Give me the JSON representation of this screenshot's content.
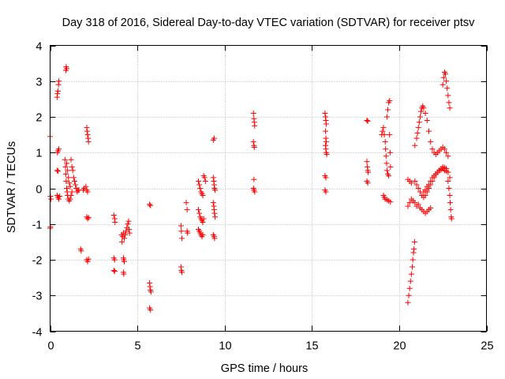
{
  "chart_data": {
    "type": "scatter",
    "title": "Day 318 of 2016, Sidereal Day-to-day VTEC variation (SDTVAR) for receiver ptsv",
    "xlabel": "GPS time / hours",
    "ylabel": "SDTVAR / TECUs",
    "xlim": [
      0,
      25
    ],
    "ylim": [
      -4,
      4
    ],
    "x_ticks": [
      0,
      5,
      10,
      15,
      20,
      25
    ],
    "x_tick_labels": [
      "0",
      "5",
      "10",
      "15",
      "20",
      "25"
    ],
    "y_ticks": [
      -4,
      -3,
      -2,
      -1,
      0,
      1,
      2,
      3,
      4
    ],
    "y_tick_labels": [
      "-4",
      "-3",
      "-2",
      "-1",
      "0",
      "1",
      "2",
      "3",
      "4"
    ],
    "grid": true,
    "marker": "plus",
    "color": "#ff0000",
    "points": [
      [
        0.0,
        1.45
      ],
      [
        0.02,
        -0.22
      ],
      [
        0.05,
        -0.3
      ],
      [
        0.02,
        -1.08
      ],
      [
        0.0,
        -1.12
      ],
      [
        0.4,
        2.55
      ],
      [
        0.42,
        2.65
      ],
      [
        0.45,
        2.72
      ],
      [
        0.48,
        2.9
      ],
      [
        0.5,
        3.0
      ],
      [
        0.42,
        1.0
      ],
      [
        0.45,
        1.05
      ],
      [
        0.5,
        1.1
      ],
      [
        0.4,
        0.5
      ],
      [
        0.45,
        0.48
      ],
      [
        0.4,
        -0.2
      ],
      [
        0.45,
        -0.25
      ],
      [
        0.5,
        -0.3
      ],
      [
        0.55,
        -0.22
      ],
      [
        0.9,
        3.3
      ],
      [
        0.92,
        3.4
      ],
      [
        0.95,
        3.35
      ],
      [
        0.85,
        0.8
      ],
      [
        0.88,
        0.6
      ],
      [
        0.9,
        0.4
      ],
      [
        0.92,
        0.2
      ],
      [
        0.95,
        0.0
      ],
      [
        0.98,
        -0.1
      ],
      [
        1.0,
        -0.2
      ],
      [
        1.05,
        -0.3
      ],
      [
        1.1,
        -0.35
      ],
      [
        1.15,
        -0.3
      ],
      [
        1.2,
        -0.2
      ],
      [
        1.25,
        -0.1
      ],
      [
        0.95,
        0.7
      ],
      [
        1.0,
        0.5
      ],
      [
        1.05,
        0.3
      ],
      [
        1.1,
        0.15
      ],
      [
        1.15,
        0.05
      ],
      [
        1.2,
        0.8
      ],
      [
        1.25,
        0.6
      ],
      [
        1.3,
        0.5
      ],
      [
        1.35,
        0.3
      ],
      [
        1.4,
        0.2
      ],
      [
        1.45,
        0.1
      ],
      [
        1.5,
        0.0
      ],
      [
        1.55,
        -0.1
      ],
      [
        1.6,
        -0.05
      ],
      [
        1.65,
        -0.05
      ],
      [
        1.9,
        -0.05
      ],
      [
        1.95,
        0.0
      ],
      [
        2.05,
        0.05
      ],
      [
        2.1,
        -0.05
      ],
      [
        2.15,
        -0.1
      ],
      [
        2.1,
        1.7
      ],
      [
        2.12,
        1.6
      ],
      [
        2.15,
        1.5
      ],
      [
        2.18,
        1.4
      ],
      [
        2.2,
        1.3
      ],
      [
        2.1,
        -0.8
      ],
      [
        2.15,
        -0.85
      ],
      [
        2.2,
        -0.82
      ],
      [
        1.75,
        -1.7
      ],
      [
        1.78,
        -1.75
      ],
      [
        2.1,
        -2.0
      ],
      [
        2.15,
        -2.05
      ],
      [
        2.2,
        -1.98
      ],
      [
        3.65,
        -0.75
      ],
      [
        3.7,
        -0.85
      ],
      [
        3.72,
        -0.95
      ],
      [
        3.65,
        -1.95
      ],
      [
        3.7,
        -2.0
      ],
      [
        3.65,
        -2.3
      ],
      [
        3.7,
        -2.32
      ],
      [
        4.1,
        -1.3
      ],
      [
        4.12,
        -1.5
      ],
      [
        4.15,
        -1.35
      ],
      [
        4.2,
        -1.25
      ],
      [
        4.25,
        -1.4
      ],
      [
        4.3,
        -1.3
      ],
      [
        4.35,
        -1.2
      ],
      [
        4.4,
        -1.1
      ],
      [
        4.45,
        -1.0
      ],
      [
        4.5,
        -0.92
      ],
      [
        4.52,
        -1.15
      ],
      [
        4.55,
        -1.25
      ],
      [
        4.2,
        -1.95
      ],
      [
        4.22,
        -2.0
      ],
      [
        4.25,
        -2.05
      ],
      [
        4.2,
        -2.35
      ],
      [
        4.22,
        -2.4
      ],
      [
        5.7,
        -0.45
      ],
      [
        5.75,
        -0.48
      ],
      [
        5.7,
        -2.65
      ],
      [
        5.72,
        -2.75
      ],
      [
        5.75,
        -2.85
      ],
      [
        5.78,
        -2.9
      ],
      [
        5.7,
        -3.35
      ],
      [
        5.75,
        -3.4
      ],
      [
        7.5,
        -1.05
      ],
      [
        7.52,
        -1.2
      ],
      [
        7.55,
        -1.4
      ],
      [
        7.5,
        -2.2
      ],
      [
        7.52,
        -2.3
      ],
      [
        7.55,
        -2.35
      ],
      [
        7.8,
        -0.4
      ],
      [
        7.85,
        -0.6
      ],
      [
        7.85,
        -1.2
      ],
      [
        7.88,
        -1.25
      ],
      [
        8.5,
        0.2
      ],
      [
        8.55,
        0.1
      ],
      [
        8.6,
        0.0
      ],
      [
        8.65,
        -0.1
      ],
      [
        8.7,
        -0.15
      ],
      [
        8.75,
        -0.2
      ],
      [
        8.8,
        0.35
      ],
      [
        8.85,
        0.3
      ],
      [
        8.9,
        0.2
      ],
      [
        8.5,
        -0.6
      ],
      [
        8.55,
        -0.7
      ],
      [
        8.6,
        -0.8
      ],
      [
        8.65,
        -0.85
      ],
      [
        8.7,
        -0.9
      ],
      [
        8.75,
        -0.95
      ],
      [
        8.8,
        -0.85
      ],
      [
        8.5,
        -1.15
      ],
      [
        8.55,
        -1.2
      ],
      [
        8.6,
        -1.25
      ],
      [
        8.65,
        -1.3
      ],
      [
        8.7,
        -1.35
      ],
      [
        8.75,
        -1.3
      ],
      [
        9.35,
        1.35
      ],
      [
        9.4,
        1.4
      ],
      [
        9.35,
        0.3
      ],
      [
        9.38,
        0.2
      ],
      [
        9.4,
        0.1
      ],
      [
        9.42,
        0.0
      ],
      [
        9.45,
        -0.05
      ],
      [
        9.35,
        -0.4
      ],
      [
        9.38,
        -0.5
      ],
      [
        9.4,
        -0.6
      ],
      [
        9.42,
        -0.7
      ],
      [
        9.45,
        -0.8
      ],
      [
        9.35,
        -1.3
      ],
      [
        9.4,
        -1.35
      ],
      [
        9.42,
        -1.4
      ],
      [
        11.65,
        2.1
      ],
      [
        11.68,
        1.95
      ],
      [
        11.7,
        1.85
      ],
      [
        11.72,
        1.75
      ],
      [
        11.65,
        1.3
      ],
      [
        11.68,
        1.2
      ],
      [
        11.7,
        1.15
      ],
      [
        11.68,
        0.25
      ],
      [
        11.65,
        0.0
      ],
      [
        11.68,
        -0.05
      ],
      [
        11.72,
        -0.1
      ],
      [
        15.75,
        2.1
      ],
      [
        15.78,
        2.0
      ],
      [
        15.8,
        1.9
      ],
      [
        15.82,
        1.8
      ],
      [
        15.78,
        1.6
      ],
      [
        15.8,
        1.4
      ],
      [
        15.82,
        1.3
      ],
      [
        15.78,
        1.2
      ],
      [
        15.8,
        1.1
      ],
      [
        15.82,
        1.0
      ],
      [
        15.85,
        0.95
      ],
      [
        15.75,
        0.35
      ],
      [
        15.8,
        0.3
      ],
      [
        15.75,
        -0.05
      ],
      [
        15.8,
        -0.1
      ],
      [
        18.15,
        1.9
      ],
      [
        18.2,
        1.88
      ],
      [
        18.15,
        0.75
      ],
      [
        18.18,
        0.6
      ],
      [
        18.2,
        0.5
      ],
      [
        18.22,
        0.45
      ],
      [
        18.15,
        0.2
      ],
      [
        18.2,
        0.15
      ],
      [
        19.0,
        1.5
      ],
      [
        19.05,
        1.6
      ],
      [
        19.1,
        1.7
      ],
      [
        19.15,
        1.5
      ],
      [
        19.2,
        1.3
      ],
      [
        19.22,
        1.1
      ],
      [
        19.25,
        0.9
      ],
      [
        19.28,
        0.7
      ],
      [
        19.3,
        0.5
      ],
      [
        19.35,
        0.4
      ],
      [
        19.4,
        0.35
      ],
      [
        19.1,
        -0.2
      ],
      [
        19.15,
        -0.25
      ],
      [
        19.2,
        -0.3
      ],
      [
        19.3,
        -0.32
      ],
      [
        19.4,
        -0.35
      ],
      [
        19.5,
        -0.38
      ],
      [
        19.3,
        2.0
      ],
      [
        19.35,
        2.2
      ],
      [
        19.4,
        2.4
      ],
      [
        19.45,
        2.45
      ],
      [
        19.45,
        1.5
      ],
      [
        19.48,
        1.0
      ],
      [
        19.5,
        0.6
      ],
      [
        20.5,
        -3.2
      ],
      [
        20.55,
        -3.0
      ],
      [
        20.6,
        -2.8
      ],
      [
        20.65,
        -2.6
      ],
      [
        20.7,
        -2.4
      ],
      [
        20.75,
        -2.2
      ],
      [
        20.78,
        -2.0
      ],
      [
        20.82,
        -1.8
      ],
      [
        20.85,
        -1.7
      ],
      [
        20.88,
        -1.5
      ],
      [
        20.5,
        -0.5
      ],
      [
        20.6,
        -0.4
      ],
      [
        20.7,
        -0.3
      ],
      [
        20.8,
        -0.35
      ],
      [
        20.9,
        -0.4
      ],
      [
        21.0,
        -0.5
      ],
      [
        21.1,
        -0.45
      ],
      [
        21.2,
        -0.55
      ],
      [
        21.3,
        -0.6
      ],
      [
        21.4,
        -0.65
      ],
      [
        21.5,
        -0.7
      ],
      [
        21.6,
        -0.65
      ],
      [
        21.7,
        -0.6
      ],
      [
        21.8,
        -0.55
      ],
      [
        20.5,
        0.25
      ],
      [
        20.6,
        0.2
      ],
      [
        20.7,
        0.15
      ],
      [
        20.9,
        0.2
      ],
      [
        21.0,
        0.1
      ],
      [
        21.1,
        0.0
      ],
      [
        21.2,
        -0.1
      ],
      [
        21.3,
        -0.2
      ],
      [
        21.4,
        -0.25
      ],
      [
        21.5,
        -0.2
      ],
      [
        21.6,
        -0.1
      ],
      [
        21.7,
        0.0
      ],
      [
        21.8,
        0.1
      ],
      [
        21.9,
        0.2
      ],
      [
        22.0,
        0.3
      ],
      [
        22.1,
        0.4
      ],
      [
        22.2,
        0.45
      ],
      [
        22.3,
        0.5
      ],
      [
        22.4,
        0.52
      ],
      [
        22.5,
        0.55
      ],
      [
        22.6,
        0.5
      ],
      [
        22.7,
        0.48
      ],
      [
        22.8,
        0.45
      ],
      [
        22.9,
        0.3
      ],
      [
        21.4,
        -0.1
      ],
      [
        21.5,
        -0.05
      ],
      [
        21.6,
        0.05
      ],
      [
        21.7,
        0.1
      ],
      [
        21.8,
        0.2
      ],
      [
        21.9,
        0.3
      ],
      [
        22.0,
        0.35
      ],
      [
        22.1,
        0.4
      ],
      [
        22.2,
        0.45
      ],
      [
        22.3,
        0.5
      ],
      [
        22.4,
        0.55
      ],
      [
        22.5,
        0.6
      ],
      [
        22.6,
        0.58
      ],
      [
        22.7,
        0.55
      ],
      [
        20.9,
        1.2
      ],
      [
        21.0,
        1.4
      ],
      [
        21.05,
        1.55
      ],
      [
        21.1,
        1.7
      ],
      [
        21.15,
        1.85
      ],
      [
        21.2,
        2.0
      ],
      [
        21.25,
        2.15
      ],
      [
        21.3,
        2.25
      ],
      [
        21.35,
        2.3
      ],
      [
        21.4,
        2.25
      ],
      [
        21.5,
        2.1
      ],
      [
        21.6,
        1.9
      ],
      [
        21.7,
        1.6
      ],
      [
        21.8,
        1.3
      ],
      [
        21.9,
        1.1
      ],
      [
        22.0,
        1.0
      ],
      [
        22.1,
        0.95
      ],
      [
        22.2,
        1.0
      ],
      [
        22.3,
        1.05
      ],
      [
        22.4,
        1.1
      ],
      [
        22.5,
        1.15
      ],
      [
        22.6,
        1.1
      ],
      [
        22.7,
        1.0
      ],
      [
        22.8,
        0.9
      ],
      [
        22.5,
        2.9
      ],
      [
        22.55,
        3.1
      ],
      [
        22.6,
        3.25
      ],
      [
        22.65,
        3.2
      ],
      [
        22.7,
        3.0
      ],
      [
        22.75,
        2.8
      ],
      [
        22.8,
        2.6
      ],
      [
        22.85,
        2.4
      ],
      [
        22.9,
        2.25
      ],
      [
        22.8,
        0.2
      ],
      [
        22.85,
        0.0
      ],
      [
        22.9,
        -0.2
      ],
      [
        22.92,
        -0.4
      ],
      [
        22.95,
        -0.6
      ],
      [
        22.98,
        -0.8
      ],
      [
        23.0,
        -0.85
      ]
    ]
  }
}
